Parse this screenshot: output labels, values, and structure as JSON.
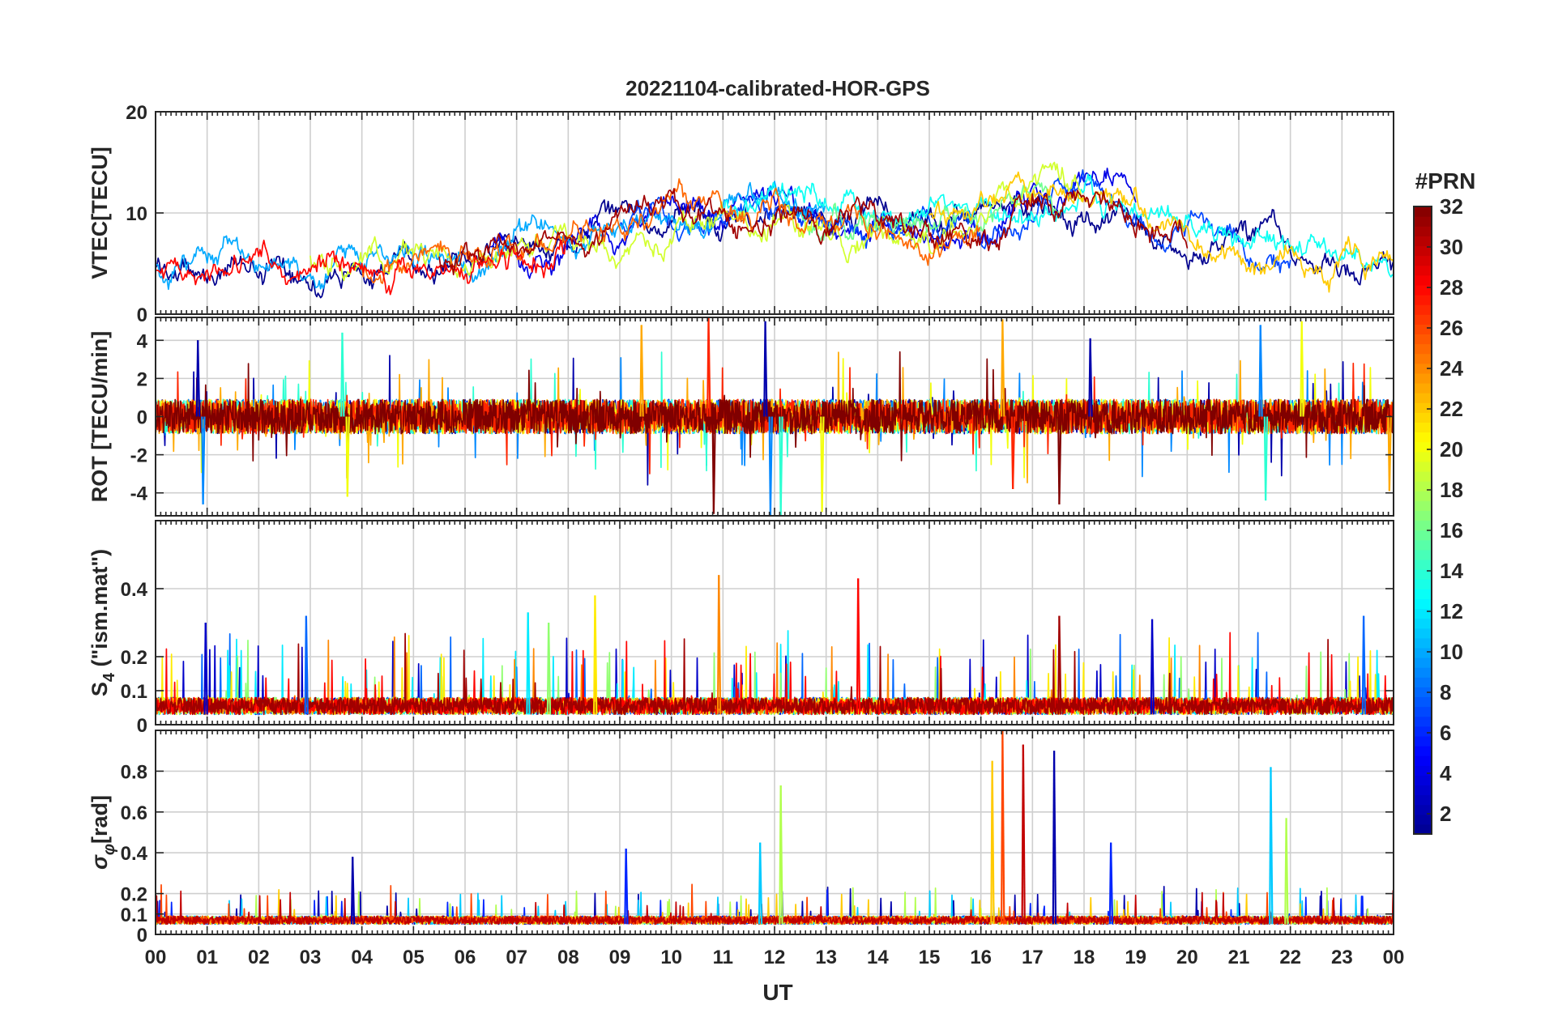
{
  "figure": {
    "title": "20221104-calibrated-HOR-GPS"
  },
  "colorbar": {
    "title": "#PRN",
    "ticks": [
      "2",
      "4",
      "6",
      "8",
      "10",
      "12",
      "14",
      "16",
      "18",
      "20",
      "22",
      "24",
      "26",
      "28",
      "30",
      "32"
    ],
    "range": [
      1,
      32
    ],
    "colormap": [
      "#00008f",
      "#0000ff",
      "#0080ff",
      "#00ffff",
      "#80ff80",
      "#ffff00",
      "#ff8000",
      "#ff0000",
      "#800000"
    ]
  },
  "chart_data": [
    {
      "type": "line",
      "panel": "vtec",
      "title": "20221104-calibrated-HOR-GPS",
      "xlabel": "",
      "ylabel": "VTEC[TECU]",
      "xlim": [
        0,
        24
      ],
      "ylim": [
        0,
        20
      ],
      "xticks": [
        0,
        1,
        2,
        3,
        4,
        5,
        6,
        7,
        8,
        9,
        10,
        11,
        12,
        13,
        14,
        15,
        16,
        17,
        18,
        19,
        20,
        21,
        22,
        23,
        24
      ],
      "yticks": [
        0,
        10,
        20
      ],
      "grid": true,
      "baseline": [
        [
          0,
          4.5
        ],
        [
          2,
          5
        ],
        [
          4,
          5
        ],
        [
          6,
          6
        ],
        [
          8,
          8
        ],
        [
          10,
          9
        ],
        [
          12,
          10
        ],
        [
          14,
          9
        ],
        [
          16,
          9
        ],
        [
          18,
          11
        ],
        [
          20,
          8
        ],
        [
          22,
          6
        ],
        [
          24,
          4
        ]
      ],
      "amplitude": 3,
      "series": [
        {
          "prn": 1,
          "start": 0,
          "end": 24
        },
        {
          "prn": 4,
          "start": 6.5,
          "end": 19
        },
        {
          "prn": 7,
          "start": 9,
          "end": 22
        },
        {
          "prn": 10,
          "start": 0,
          "end": 13
        },
        {
          "prn": 13,
          "start": 11,
          "end": 24
        },
        {
          "prn": 16,
          "start": 12.5,
          "end": 17.5
        },
        {
          "prn": 19,
          "start": 3,
          "end": 18
        },
        {
          "prn": 22,
          "start": 15,
          "end": 24
        },
        {
          "prn": 25,
          "start": 4,
          "end": 16
        },
        {
          "prn": 28,
          "start": 0,
          "end": 8
        },
        {
          "prn": 31,
          "start": 5.5,
          "end": 20
        }
      ]
    },
    {
      "type": "line",
      "panel": "rot",
      "title": "",
      "xlabel": "",
      "ylabel": "ROT [TECU/min]",
      "xlim": [
        0,
        24
      ],
      "ylim": [
        -5.2,
        5.2
      ],
      "xticks": [
        0,
        1,
        2,
        3,
        4,
        5,
        6,
        7,
        8,
        9,
        10,
        11,
        12,
        13,
        14,
        15,
        16,
        17,
        18,
        19,
        20,
        21,
        22,
        23,
        24
      ],
      "yticks": [
        -4,
        -2,
        0,
        2,
        4
      ],
      "grid": true,
      "baseline": [
        [
          0,
          0
        ],
        [
          24,
          0
        ]
      ],
      "amplitude": 0.9,
      "spikes": [
        {
          "x": 0.8,
          "y": 4
        },
        {
          "x": 0.9,
          "y": -4.6
        },
        {
          "x": 3.6,
          "y": 4.4
        },
        {
          "x": 3.7,
          "y": -4.2
        },
        {
          "x": 9.4,
          "y": 4.8
        },
        {
          "x": 10.7,
          "y": 5.2
        },
        {
          "x": 10.8,
          "y": -5.1
        },
        {
          "x": 11.8,
          "y": 5
        },
        {
          "x": 11.9,
          "y": -5.2
        },
        {
          "x": 12.1,
          "y": -5.2
        },
        {
          "x": 12.9,
          "y": -5
        },
        {
          "x": 16.4,
          "y": 5.1
        },
        {
          "x": 16.6,
          "y": -3.8
        },
        {
          "x": 17.5,
          "y": -4.6
        },
        {
          "x": 18.1,
          "y": 4.1
        },
        {
          "x": 21.4,
          "y": 4.8
        },
        {
          "x": 21.5,
          "y": -4.4
        },
        {
          "x": 22.2,
          "y": 5
        },
        {
          "x": 23.9,
          "y": -3.9
        }
      ],
      "series": [
        {
          "prn": 2,
          "start": 0,
          "end": 24
        },
        {
          "prn": 9,
          "start": 0,
          "end": 24
        },
        {
          "prn": 14,
          "start": 0,
          "end": 24
        },
        {
          "prn": 20,
          "start": 0,
          "end": 24
        },
        {
          "prn": 23,
          "start": 0,
          "end": 24
        },
        {
          "prn": 27,
          "start": 0,
          "end": 24
        },
        {
          "prn": 32,
          "start": 0,
          "end": 24
        }
      ]
    },
    {
      "type": "line",
      "panel": "s4",
      "title": "",
      "xlabel": "",
      "ylabel": "S4 (\"ism.mat\")",
      "ylabel_main": "S",
      "ylabel_sub": "4",
      "ylabel_rest": " (\"ism.mat\")",
      "xlim": [
        0,
        24
      ],
      "ylim": [
        0,
        0.6
      ],
      "xticks": [
        0,
        1,
        2,
        3,
        4,
        5,
        6,
        7,
        8,
        9,
        10,
        11,
        12,
        13,
        14,
        15,
        16,
        17,
        18,
        19,
        20,
        21,
        22,
        23,
        24
      ],
      "yticks": [
        0,
        0.1,
        0.2,
        0.4
      ],
      "grid": true,
      "baseline": [
        [
          0,
          0.03
        ],
        [
          24,
          0.03
        ]
      ],
      "amplitude": 0.05,
      "spikes": [
        {
          "x": 0.95,
          "y": 0.3
        },
        {
          "x": 2.9,
          "y": 0.32
        },
        {
          "x": 7.2,
          "y": 0.33
        },
        {
          "x": 7.6,
          "y": 0.3
        },
        {
          "x": 8.5,
          "y": 0.38
        },
        {
          "x": 10.9,
          "y": 0.44
        },
        {
          "x": 13.6,
          "y": 0.43
        },
        {
          "x": 17.5,
          "y": 0.32
        },
        {
          "x": 19.3,
          "y": 0.31
        },
        {
          "x": 23.4,
          "y": 0.32
        }
      ],
      "series": [
        {
          "prn": 3,
          "start": 0,
          "end": 24
        },
        {
          "prn": 8,
          "start": 0,
          "end": 24
        },
        {
          "prn": 12,
          "start": 0,
          "end": 24
        },
        {
          "prn": 17,
          "start": 0,
          "end": 24
        },
        {
          "prn": 21,
          "start": 0,
          "end": 24
        },
        {
          "prn": 24,
          "start": 0,
          "end": 24
        },
        {
          "prn": 28,
          "start": 0,
          "end": 24
        },
        {
          "prn": 31,
          "start": 0,
          "end": 24
        }
      ]
    },
    {
      "type": "line",
      "panel": "sigma_phi",
      "title": "",
      "xlabel": "UT",
      "ylabel": "σφ[rad]",
      "ylabel_main": "σ",
      "ylabel_sub": "φ",
      "ylabel_rest": "[rad]",
      "xlim": [
        0,
        24
      ],
      "ylim": [
        0,
        1
      ],
      "xticks": [
        0,
        1,
        2,
        3,
        4,
        5,
        6,
        7,
        8,
        9,
        10,
        11,
        12,
        13,
        14,
        15,
        16,
        17,
        18,
        19,
        20,
        21,
        22,
        23,
        24
      ],
      "xtick_labels": [
        "00",
        "01",
        "02",
        "03",
        "04",
        "05",
        "06",
        "07",
        "08",
        "09",
        "10",
        "11",
        "12",
        "13",
        "14",
        "15",
        "16",
        "17",
        "18",
        "19",
        "20",
        "21",
        "22",
        "23",
        "00"
      ],
      "yticks": [
        0,
        0.1,
        0.2,
        0.4,
        0.6,
        0.8
      ],
      "grid": true,
      "baseline": [
        [
          0,
          0.05
        ],
        [
          24,
          0.05
        ]
      ],
      "amplitude": 0.04,
      "spikes": [
        {
          "x": 3.8,
          "y": 0.38
        },
        {
          "x": 9.1,
          "y": 0.42
        },
        {
          "x": 11.7,
          "y": 0.45
        },
        {
          "x": 12.1,
          "y": 0.73
        },
        {
          "x": 16.2,
          "y": 0.85
        },
        {
          "x": 16.4,
          "y": 1
        },
        {
          "x": 16.8,
          "y": 0.93
        },
        {
          "x": 17.4,
          "y": 0.9
        },
        {
          "x": 18.5,
          "y": 0.45
        },
        {
          "x": 21.6,
          "y": 0.82
        },
        {
          "x": 21.9,
          "y": 0.57
        }
      ],
      "series": [
        {
          "prn": 2,
          "start": 0,
          "end": 24
        },
        {
          "prn": 6,
          "start": 0,
          "end": 24
        },
        {
          "prn": 11,
          "start": 0,
          "end": 24
        },
        {
          "prn": 18,
          "start": 0,
          "end": 24
        },
        {
          "prn": 22,
          "start": 0,
          "end": 24
        },
        {
          "prn": 26,
          "start": 0,
          "end": 24
        },
        {
          "prn": 30,
          "start": 0,
          "end": 24
        }
      ]
    }
  ]
}
